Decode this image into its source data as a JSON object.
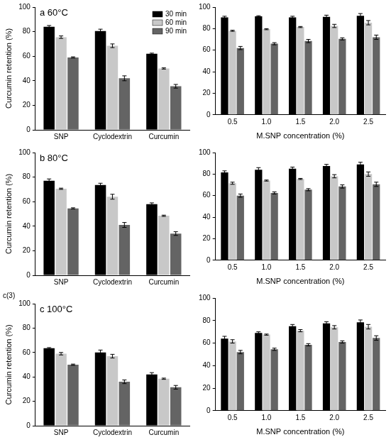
{
  "chart_data": [
    {
      "type": "bar",
      "title": "a 60°C",
      "y_label": "Curcumin retention (%)",
      "categories": [
        "SNP",
        "Cyclodextrin",
        "Curcumin"
      ],
      "series": [
        {
          "name": "30 min",
          "color": "#000000",
          "values": [
            84,
            80.5,
            62
          ],
          "errors": [
            1,
            1.5,
            0.5
          ]
        },
        {
          "name": "60 min",
          "color": "#c8c8c8",
          "values": [
            75.5,
            68.5,
            50
          ],
          "errors": [
            1,
            1.5,
            0.5
          ]
        },
        {
          "name": "90 min",
          "color": "#646464",
          "values": [
            59,
            42,
            35.5
          ],
          "errors": [
            0.5,
            2,
            1.5
          ]
        }
      ],
      "ylim": [
        0,
        100
      ],
      "yticks": [
        0,
        20,
        40,
        60,
        80,
        100
      ],
      "grid": false,
      "legend": "top right"
    },
    {
      "type": "bar",
      "x_label": "M.SNP concentration (%)",
      "categories": [
        "0.5",
        "1.0",
        "1.5",
        "2.0",
        "2.5"
      ],
      "series": [
        {
          "color": "#000000",
          "values": [
            90.5,
            91.5,
            90.5,
            91,
            92
          ],
          "errors": [
            1,
            0.5,
            1,
            1.5,
            2
          ]
        },
        {
          "color": "#c8c8c8",
          "values": [
            78,
            79.5,
            81.5,
            82.5,
            85.5
          ],
          "errors": [
            0.5,
            0.5,
            0.5,
            1.5,
            2
          ]
        },
        {
          "color": "#646464",
          "values": [
            62,
            66,
            68.5,
            70.5,
            72
          ],
          "errors": [
            1.5,
            1,
            1.5,
            1,
            2
          ]
        }
      ],
      "ylim": [
        0,
        100
      ],
      "yticks": [
        0,
        20,
        40,
        60,
        80,
        100
      ],
      "grid": false
    },
    {
      "type": "bar",
      "title": "b 80°C",
      "y_label": "Curcumin retention (%)",
      "categories": [
        "SNP",
        "Cyclodextrin",
        "Curcumin"
      ],
      "series": [
        {
          "color": "#000000",
          "values": [
            77,
            73.5,
            58
          ],
          "errors": [
            1.5,
            1.5,
            1
          ]
        },
        {
          "color": "#c8c8c8",
          "values": [
            70.5,
            64,
            48.5
          ],
          "errors": [
            0.5,
            2,
            0.5
          ]
        },
        {
          "color": "#646464",
          "values": [
            54.5,
            41,
            34
          ],
          "errors": [
            0.5,
            2,
            1.5
          ]
        }
      ],
      "ylim": [
        0,
        100
      ],
      "yticks": [
        0,
        20,
        40,
        60,
        80,
        100
      ],
      "grid": false
    },
    {
      "type": "bar",
      "x_label": "M.SNP concentration (%)",
      "categories": [
        "0.5",
        "1.0",
        "1.5",
        "2.0",
        "2.5"
      ],
      "series": [
        {
          "color": "#000000",
          "values": [
            81.5,
            84,
            85,
            87.5,
            89
          ],
          "errors": [
            1.5,
            2,
            1.5,
            1.5,
            2
          ]
        },
        {
          "color": "#c8c8c8",
          "values": [
            71.5,
            74,
            75.5,
            78,
            80
          ],
          "errors": [
            1,
            0.5,
            0.5,
            1.5,
            2
          ]
        },
        {
          "color": "#646464",
          "values": [
            60,
            62.5,
            65.5,
            68.5,
            70.5
          ],
          "errors": [
            1.5,
            1,
            1,
            1.5,
            2
          ]
        }
      ],
      "ylim": [
        0,
        100
      ],
      "yticks": [
        0,
        20,
        40,
        60,
        80,
        100
      ],
      "grid": false
    },
    {
      "type": "bar",
      "title": "c 100°C",
      "y_label": "Curcumin retention (%)",
      "annotations": [
        "c(3)"
      ],
      "categories": [
        "SNP",
        "Cyclodextrin",
        "Curcumin"
      ],
      "series": [
        {
          "color": "#000000",
          "values": [
            63.5,
            60,
            42
          ],
          "errors": [
            0.5,
            2,
            1.5
          ]
        },
        {
          "color": "#c8c8c8",
          "values": [
            59,
            57,
            38.5
          ],
          "errors": [
            1,
            1.5,
            0.5
          ]
        },
        {
          "color": "#646464",
          "values": [
            50,
            36,
            31.5
          ],
          "errors": [
            0.5,
            1.5,
            1.5
          ]
        }
      ],
      "ylim": [
        0,
        100
      ],
      "yticks": [
        0,
        20,
        40,
        60,
        80,
        100
      ],
      "grid": false
    },
    {
      "type": "bar",
      "x_label": "M.SNP concentration (%)",
      "categories": [
        "0.5",
        "1.0",
        "1.5",
        "2.0",
        "2.5"
      ],
      "series": [
        {
          "color": "#000000",
          "values": [
            64,
            69,
            75,
            77.5,
            78.5
          ],
          "errors": [
            2,
            1,
            1.5,
            1.5,
            2
          ]
        },
        {
          "color": "#c8c8c8",
          "values": [
            61.5,
            67.5,
            71,
            74,
            74.5
          ],
          "errors": [
            1.5,
            0.5,
            1,
            1.5,
            2
          ]
        },
        {
          "color": "#646464",
          "values": [
            52,
            54.5,
            58.5,
            61,
            64.5
          ],
          "errors": [
            1.5,
            1,
            1,
            1,
            2
          ]
        }
      ],
      "ylim": [
        0,
        100
      ],
      "yticks": [
        0,
        20,
        40,
        60,
        80,
        100
      ],
      "grid": false
    }
  ]
}
